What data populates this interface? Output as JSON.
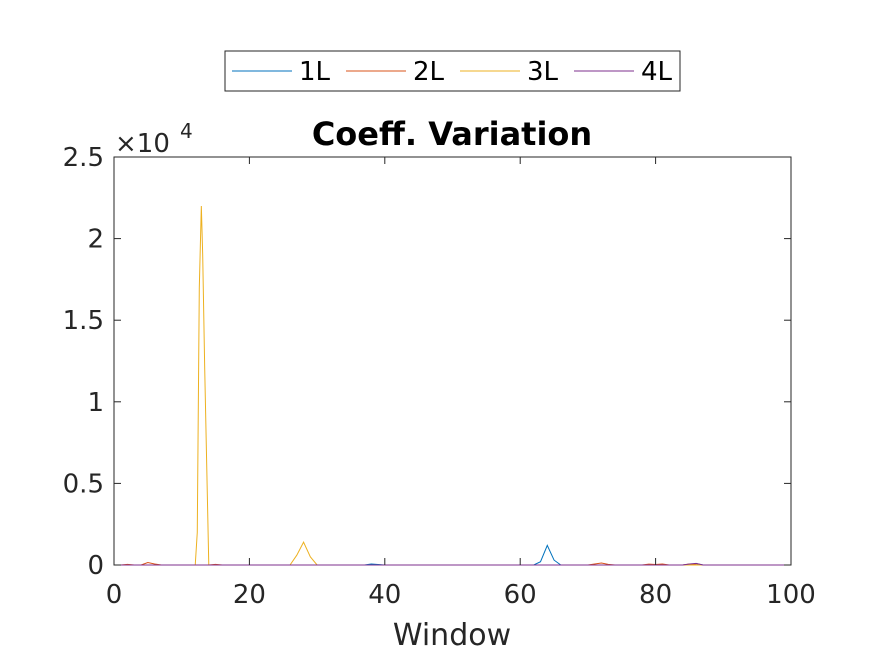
{
  "chart_data": {
    "type": "line",
    "title": "Coeff. Variation",
    "xlabel": "Window",
    "ylabel": "",
    "xlim": [
      0,
      100
    ],
    "ylim": [
      0,
      25000
    ],
    "x_ticks": [
      "0",
      "20",
      "40",
      "60",
      "80",
      "100"
    ],
    "x_tick_values": [
      0,
      20,
      40,
      60,
      80,
      100
    ],
    "y_ticks": [
      "0",
      "0.5",
      "1",
      "1.5",
      "2",
      "2.5"
    ],
    "y_tick_values": [
      0,
      5000,
      10000,
      15000,
      20000,
      25000
    ],
    "y_multiplier": {
      "base": "×10",
      "exponent": "4"
    },
    "grid": false,
    "legend_position": "top-center-outside",
    "series": [
      {
        "name": "1L",
        "color": "#0072BD",
        "x": [
          1,
          10,
          20,
          30,
          37,
          38,
          39,
          40,
          50,
          60,
          62,
          63,
          64,
          65,
          66,
          70,
          80,
          84,
          85,
          86,
          87,
          90,
          100
        ],
        "y": [
          0,
          0,
          0,
          0,
          0,
          60,
          30,
          0,
          0,
          0,
          0,
          200,
          1200,
          300,
          0,
          0,
          0,
          0,
          30,
          80,
          0,
          0,
          0
        ]
      },
      {
        "name": "2L",
        "color": "#D95319",
        "x": [
          1,
          2,
          3,
          4,
          5,
          6,
          7,
          10,
          14,
          15,
          16,
          20,
          30,
          40,
          50,
          60,
          70,
          71,
          72,
          73,
          74,
          78,
          79,
          80,
          81,
          82,
          84,
          85,
          86,
          87,
          90,
          100
        ],
        "y": [
          0,
          40,
          0,
          0,
          150,
          60,
          0,
          0,
          0,
          40,
          0,
          0,
          0,
          0,
          0,
          0,
          0,
          60,
          120,
          40,
          0,
          0,
          50,
          30,
          60,
          0,
          0,
          60,
          20,
          0,
          0,
          0
        ]
      },
      {
        "name": "3L",
        "color": "#EDB120",
        "x": [
          1,
          11,
          12,
          12.3,
          12.6,
          12.9,
          13.1,
          13.4,
          13.7,
          14,
          15,
          25,
          26,
          27,
          28,
          29,
          30,
          31,
          40,
          50,
          60,
          70,
          80,
          90,
          100
        ],
        "y": [
          0,
          0,
          0,
          2000,
          17000,
          22000,
          19000,
          12000,
          6000,
          0,
          0,
          0,
          0,
          600,
          1400,
          500,
          0,
          0,
          0,
          0,
          0,
          0,
          0,
          0,
          0
        ]
      },
      {
        "name": "4L",
        "color": "#7E2F8E",
        "x": [
          1,
          10,
          20,
          30,
          40,
          50,
          60,
          70,
          80,
          84,
          85,
          86,
          87,
          88,
          90,
          100
        ],
        "y": [
          0,
          0,
          0,
          0,
          0,
          0,
          0,
          0,
          0,
          0,
          60,
          100,
          0,
          0,
          0,
          0
        ]
      }
    ]
  }
}
